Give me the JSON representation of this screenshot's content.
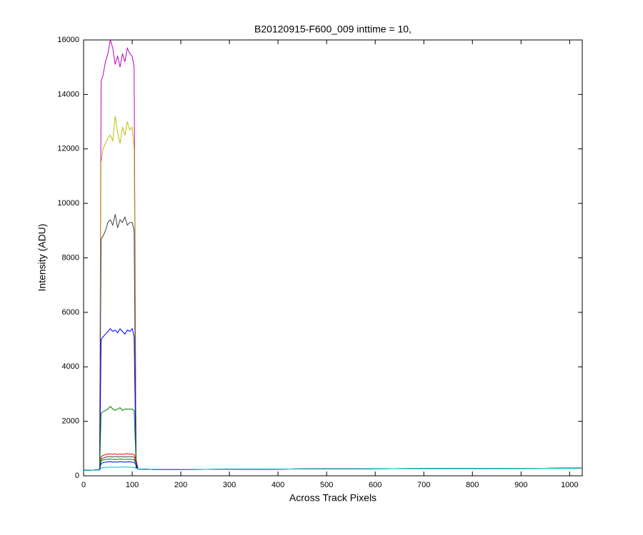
{
  "chart_data": {
    "type": "line",
    "title": "B20120915-F600_009 inttime = 10,",
    "xlabel": "Across Track Pixels",
    "ylabel": "Intensity (ADU)",
    "x": [
      0,
      20,
      33,
      36,
      40,
      45,
      50,
      55,
      60,
      65,
      70,
      75,
      80,
      85,
      90,
      95,
      100,
      104,
      108,
      112,
      150,
      300,
      500,
      700,
      1024
    ],
    "xlim": [
      0,
      1026
    ],
    "xticks": [
      0,
      100,
      200,
      300,
      400,
      500,
      600,
      700,
      800,
      900,
      1000
    ],
    "ylim": [
      0,
      16000
    ],
    "yticks": [
      0,
      2000,
      4000,
      6000,
      8000,
      10000,
      12000,
      14000,
      16000
    ],
    "series": [
      {
        "color": "#bf00bf",
        "values": [
          200,
          210,
          220,
          14500,
          14700,
          15200,
          15500,
          16000,
          15700,
          15100,
          15400,
          15000,
          15500,
          15200,
          15700,
          15500,
          15400,
          15000,
          300,
          250,
          230,
          240,
          255,
          265,
          280
        ]
      },
      {
        "color": "#bfbf00",
        "values": [
          200,
          210,
          220,
          11500,
          12000,
          12200,
          12400,
          12500,
          12300,
          13200,
          12600,
          12200,
          12800,
          12500,
          13000,
          12700,
          12800,
          12000,
          300,
          250,
          230,
          240,
          255,
          265,
          280
        ]
      },
      {
        "color": "#404040",
        "values": [
          200,
          210,
          220,
          8700,
          8800,
          9000,
          9300,
          9400,
          9200,
          9600,
          9100,
          9400,
          9300,
          9500,
          9200,
          9300,
          9300,
          9000,
          300,
          250,
          230,
          240,
          255,
          265,
          280
        ]
      },
      {
        "color": "#0000ff",
        "values": [
          200,
          210,
          220,
          5000,
          5100,
          5200,
          5300,
          5400,
          5300,
          5350,
          5250,
          5400,
          5300,
          5200,
          5350,
          5300,
          5400,
          5100,
          300,
          250,
          230,
          240,
          255,
          265,
          280
        ]
      },
      {
        "color": "#008000",
        "values": [
          200,
          210,
          220,
          2300,
          2350,
          2400,
          2450,
          2550,
          2450,
          2400,
          2450,
          2500,
          2400,
          2450,
          2450,
          2450,
          2450,
          2400,
          500,
          250,
          230,
          240,
          255,
          265,
          280
        ]
      },
      {
        "color": "#ff0000",
        "values": [
          200,
          210,
          230,
          700,
          750,
          780,
          800,
          800,
          790,
          810,
          780,
          800,
          790,
          800,
          810,
          790,
          800,
          780,
          600,
          250,
          230,
          240,
          255,
          265,
          280
        ]
      },
      {
        "color": "#404040",
        "values": [
          200,
          210,
          230,
          600,
          650,
          680,
          700,
          700,
          690,
          710,
          690,
          700,
          700,
          690,
          700,
          700,
          700,
          680,
          500,
          250,
          230,
          240,
          255,
          265,
          280
        ]
      },
      {
        "color": "#008000",
        "values": [
          200,
          210,
          230,
          550,
          580,
          600,
          610,
          620,
          600,
          610,
          600,
          620,
          610,
          600,
          610,
          610,
          600,
          590,
          450,
          250,
          230,
          240,
          255,
          265,
          280
        ]
      },
      {
        "color": "#0000ff",
        "values": [
          200,
          210,
          230,
          450,
          480,
          500,
          510,
          520,
          500,
          510,
          500,
          520,
          510,
          500,
          510,
          510,
          500,
          490,
          400,
          250,
          230,
          240,
          255,
          265,
          280
        ]
      },
      {
        "color": "#00bfbf",
        "values": [
          200,
          210,
          220,
          280,
          300,
          310,
          320,
          320,
          310,
          320,
          310,
          320,
          320,
          310,
          320,
          320,
          310,
          300,
          280,
          250,
          230,
          240,
          255,
          265,
          280
        ]
      }
    ]
  }
}
